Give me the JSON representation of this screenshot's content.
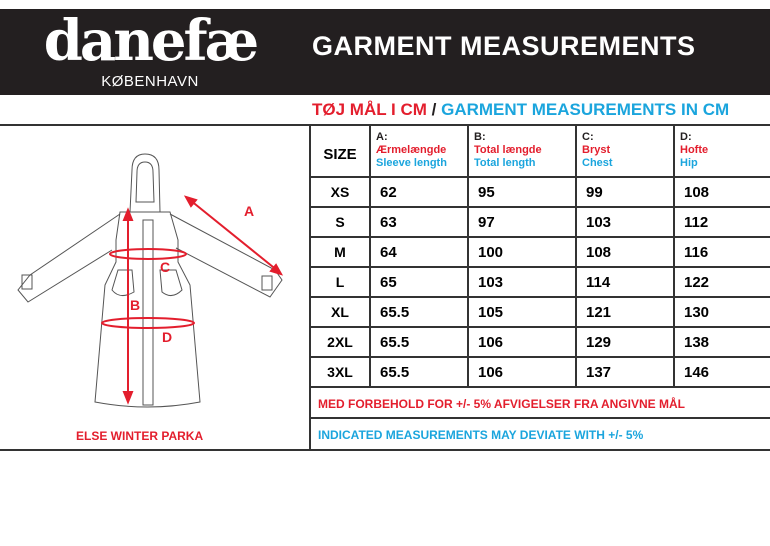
{
  "brand": {
    "name": "danefæ",
    "city": "KØBENHAVN"
  },
  "header": {
    "title": "GARMENT MEASUREMENTS"
  },
  "subtitle": {
    "danish": "TØJ MÅL I CM",
    "separator": " / ",
    "english": "GARMENT MEASUREMENTS IN CM"
  },
  "table": {
    "size_header": "SIZE",
    "columns": [
      {
        "letter": "A:",
        "danish": "Ærmelængde",
        "english": "Sleeve length"
      },
      {
        "letter": "B:",
        "danish": "Total længde",
        "english": "Total length"
      },
      {
        "letter": "C:",
        "danish": "Bryst",
        "english": "Chest"
      },
      {
        "letter": "D:",
        "danish": "Hofte",
        "english": "Hip"
      }
    ],
    "rows": [
      {
        "size": "XS",
        "values": [
          "62",
          "95",
          "99",
          "108"
        ]
      },
      {
        "size": "S",
        "values": [
          "63",
          "97",
          "103",
          "112"
        ]
      },
      {
        "size": "M",
        "values": [
          "64",
          "100",
          "108",
          "116"
        ]
      },
      {
        "size": "L",
        "values": [
          "65",
          "103",
          "114",
          "122"
        ]
      },
      {
        "size": "XL",
        "values": [
          "65.5",
          "105",
          "121",
          "130"
        ]
      },
      {
        "size": "2XL",
        "values": [
          "65.5",
          "106",
          "129",
          "138"
        ]
      },
      {
        "size": "3XL",
        "values": [
          "65.5",
          "106",
          "137",
          "146"
        ]
      }
    ],
    "note_danish": "MED FORBEHOLD FOR +/- 5% AFVIGELSER FRA ANGIVNE MÅL",
    "note_english": "INDICATED MEASUREMENTS MAY DEVIATE WITH +/- 5%"
  },
  "diagram": {
    "labels": [
      "A",
      "B",
      "C",
      "D"
    ],
    "caption": "ELSE WINTER PARKA"
  },
  "colors": {
    "red": "#e31e2d",
    "blue": "#1ba5dd",
    "dark": "#231f20"
  }
}
